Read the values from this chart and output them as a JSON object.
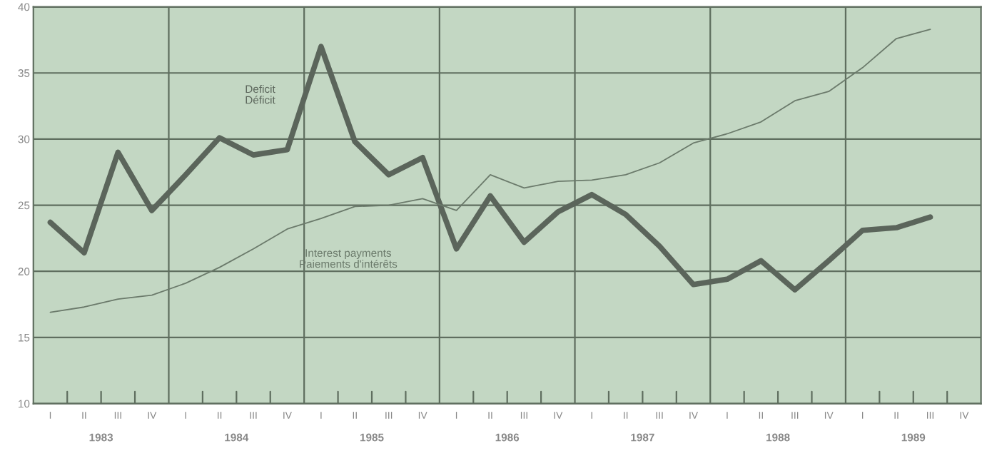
{
  "chart_data": {
    "type": "line",
    "categories": [
      "I",
      "II",
      "III",
      "IV",
      "I",
      "II",
      "III",
      "IV",
      "I",
      "II",
      "III",
      "IV",
      "I",
      "II",
      "III",
      "IV",
      "I",
      "II",
      "III",
      "IV",
      "I",
      "II",
      "III",
      "IV",
      "I",
      "II",
      "III",
      "IV"
    ],
    "series": [
      {
        "name": "Deficit\nDéficit",
        "color": "#5b655b",
        "values": [
          23.7,
          21.4,
          29.0,
          24.6,
          27.3,
          30.1,
          28.8,
          29.2,
          37.0,
          29.8,
          27.3,
          28.6,
          21.7,
          25.7,
          22.2,
          24.5,
          25.8,
          24.3,
          21.9,
          19.0,
          19.4,
          20.8,
          18.6,
          20.8,
          23.1,
          23.3,
          24.1,
          null
        ]
      },
      {
        "name": "Interest payments\nPaiements d'intérêts",
        "color": "#6b7a6b",
        "values": [
          16.9,
          17.3,
          17.9,
          18.2,
          19.1,
          20.3,
          21.7,
          23.2,
          24.0,
          24.9,
          25.0,
          25.5,
          24.6,
          27.3,
          26.3,
          26.8,
          26.9,
          27.3,
          28.2,
          29.7,
          30.4,
          31.3,
          32.9,
          33.6,
          35.4,
          37.6,
          38.3,
          null
        ]
      }
    ],
    "ylim": [
      10,
      40
    ],
    "yticks": [
      10,
      15,
      20,
      25,
      30,
      35,
      40
    ],
    "grid": true,
    "legend": false,
    "annotations": [
      "1983",
      "1984",
      "1985",
      "1986",
      "1987",
      "1988",
      "1989"
    ]
  }
}
